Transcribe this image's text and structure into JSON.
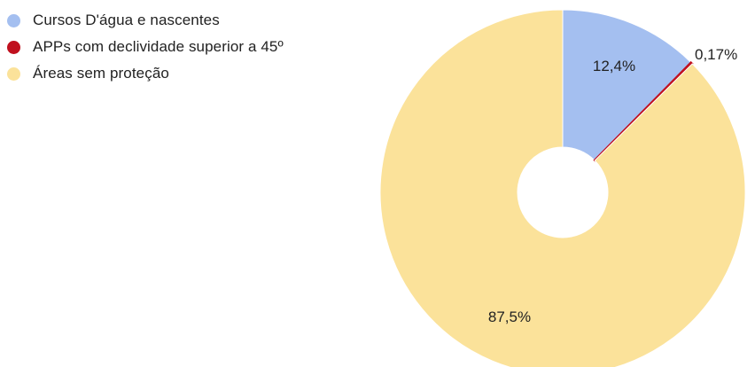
{
  "chart_data": {
    "type": "pie",
    "donut": true,
    "title": "",
    "legend_position": "top-left",
    "start_angle_deg": 0,
    "direction": "clockwise",
    "slices": [
      {
        "label": "Cursos D'água e nascentes",
        "value": 12.4,
        "value_label": "12,4%",
        "color": "#a4bff0"
      },
      {
        "label": "APPs com declividade superior a 45º",
        "value": 0.17,
        "value_label": "0,17%",
        "color": "#c0101e"
      },
      {
        "label": "Áreas sem proteção",
        "value": 87.5,
        "value_label": "87,5%",
        "color": "#fbe29a"
      }
    ]
  }
}
